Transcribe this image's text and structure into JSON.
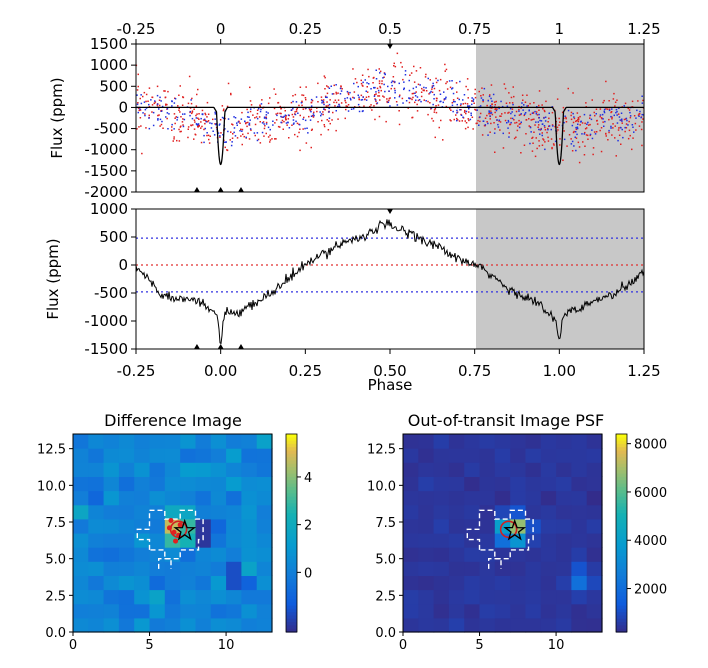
{
  "chart_data": [
    {
      "type": "scatter",
      "panel": "phase-folded-flux",
      "ylabel": "Flux (ppm)",
      "xlim": [
        -0.25,
        1.25
      ],
      "ylim": [
        -2000,
        1500
      ],
      "top_ticks": [
        "-0.25",
        "0",
        "0.25",
        "0.5",
        "0.75",
        "1",
        "1.25"
      ],
      "top_tick_values": [
        -0.25,
        0,
        0.25,
        0.5,
        0.75,
        1,
        1.25
      ],
      "yticks": [
        "1500",
        "1000",
        "500",
        "0",
        "-500",
        "-1000",
        "-1500",
        "-2000"
      ],
      "ytick_values": [
        1500,
        1000,
        500,
        0,
        -500,
        -1000,
        -1500,
        -2000
      ],
      "shaded_range": [
        0.75,
        1.25
      ],
      "colors": {
        "points_a": "#e02020",
        "points_b": "#2030e0",
        "model": "#000000",
        "shade": "#c8c8c8"
      },
      "series": [
        {
          "type": "scatter",
          "color": "red",
          "trend_x": [
            -0.25,
            0.0,
            0.25,
            0.5,
            0.75,
            1.0,
            1.25
          ],
          "trend_y": [
            100,
            -500,
            -200,
            500,
            0,
            -500,
            -200
          ]
        },
        {
          "type": "scatter",
          "color": "blue",
          "trend_x": [
            -0.25,
            0.0,
            0.25,
            0.5,
            0.75,
            1.0,
            1.25
          ],
          "trend_y": [
            100,
            -500,
            -200,
            500,
            0,
            -500,
            -200
          ]
        },
        {
          "type": "line",
          "color": "black",
          "baseline": 0,
          "transits": [
            {
              "x": 0.0,
              "depth": -1350
            },
            {
              "x": 1.0,
              "depth": -1350
            }
          ]
        }
      ]
    },
    {
      "type": "line",
      "panel": "binned-flux",
      "ylabel": "Flux (ppm)",
      "xlabel": "Phase",
      "xlim": [
        -0.25,
        1.25
      ],
      "ylim": [
        -1500,
        1000
      ],
      "xticks": [
        "-0.25",
        "0.00",
        "0.25",
        "0.50",
        "0.75",
        "1.00",
        "1.25"
      ],
      "xtick_values": [
        -0.25,
        0,
        0.25,
        0.5,
        0.75,
        1,
        1.25
      ],
      "yticks": [
        "1000",
        "500",
        "0",
        "-500",
        "-1000",
        "-1500"
      ],
      "ytick_values": [
        1000,
        500,
        0,
        -500,
        -1000,
        -1500
      ],
      "shaded_range": [
        0.75,
        1.25
      ],
      "reference_lines": [
        {
          "y": 480,
          "color": "#3030e0",
          "style": "dotted"
        },
        {
          "y": 0,
          "color": "#e03030",
          "style": "dotted"
        },
        {
          "y": -480,
          "color": "#3030e0",
          "style": "dotted"
        }
      ],
      "x": [
        -0.25,
        -0.22,
        -0.18,
        -0.14,
        -0.1,
        -0.06,
        -0.03,
        -0.01,
        0.0,
        0.01,
        0.03,
        0.06,
        0.1,
        0.15,
        0.2,
        0.25,
        0.3,
        0.35,
        0.4,
        0.45,
        0.48,
        0.52,
        0.56,
        0.6,
        0.65,
        0.7,
        0.75,
        0.8,
        0.85,
        0.9,
        0.94,
        0.97,
        0.99,
        1.0,
        1.01,
        1.03,
        1.06,
        1.1,
        1.15,
        1.2,
        1.25
      ],
      "y": [
        -50,
        -200,
        -500,
        -600,
        -550,
        -700,
        -800,
        -900,
        -1450,
        -850,
        -900,
        -850,
        -700,
        -500,
        -250,
        0,
        180,
        380,
        480,
        580,
        730,
        650,
        580,
        450,
        300,
        100,
        0,
        -180,
        -450,
        -550,
        -700,
        -900,
        -1000,
        -1400,
        -950,
        -800,
        -800,
        -650,
        -550,
        -400,
        -100
      ]
    },
    {
      "type": "heatmap",
      "title": "Difference Image",
      "xlim": [
        0,
        13
      ],
      "ylim": [
        0,
        13.5
      ],
      "xticks": [
        "0",
        "5",
        "10"
      ],
      "xtick_values": [
        0,
        5,
        10
      ],
      "yticks": [
        "0.0",
        "2.5",
        "5.0",
        "7.5",
        "10.0",
        "12.5"
      ],
      "ytick_values": [
        0,
        2.5,
        5,
        7.5,
        10,
        12.5
      ],
      "colorbar_ticks": [
        "4",
        "2",
        "0"
      ],
      "colorbar_values": [
        4,
        2,
        0
      ],
      "colorbar_range": [
        -2.5,
        5.8
      ],
      "markers": {
        "star": [
          7.3,
          6.9
        ],
        "circle": [
          6.9,
          7.0
        ]
      }
    },
    {
      "type": "heatmap",
      "title": "Out-of-transit Image PSF",
      "xlim": [
        0,
        13
      ],
      "ylim": [
        0,
        13.5
      ],
      "xticks": [
        "0",
        "5",
        "10"
      ],
      "xtick_values": [
        0,
        5,
        10
      ],
      "yticks": [
        "0.0",
        "2.5",
        "5.0",
        "7.5",
        "10.0",
        "12.5"
      ],
      "ytick_values": [
        0,
        2.5,
        5,
        7.5,
        10,
        12.5
      ],
      "colorbar_ticks": [
        "8000",
        "6000",
        "4000",
        "2000"
      ],
      "colorbar_values": [
        8000,
        6000,
        4000,
        2000
      ],
      "colorbar_range": [
        200,
        8400
      ],
      "markers": {
        "star": [
          7.3,
          6.9
        ],
        "circle": [
          6.9,
          7.0
        ]
      }
    }
  ],
  "labels": {
    "top_ylabel": "Flux (ppm)",
    "mid_ylabel": "Flux (ppm)",
    "xlabel": "Phase",
    "diff_title": "Difference Image",
    "oot_title": "Out-of-transit Image PSF"
  }
}
